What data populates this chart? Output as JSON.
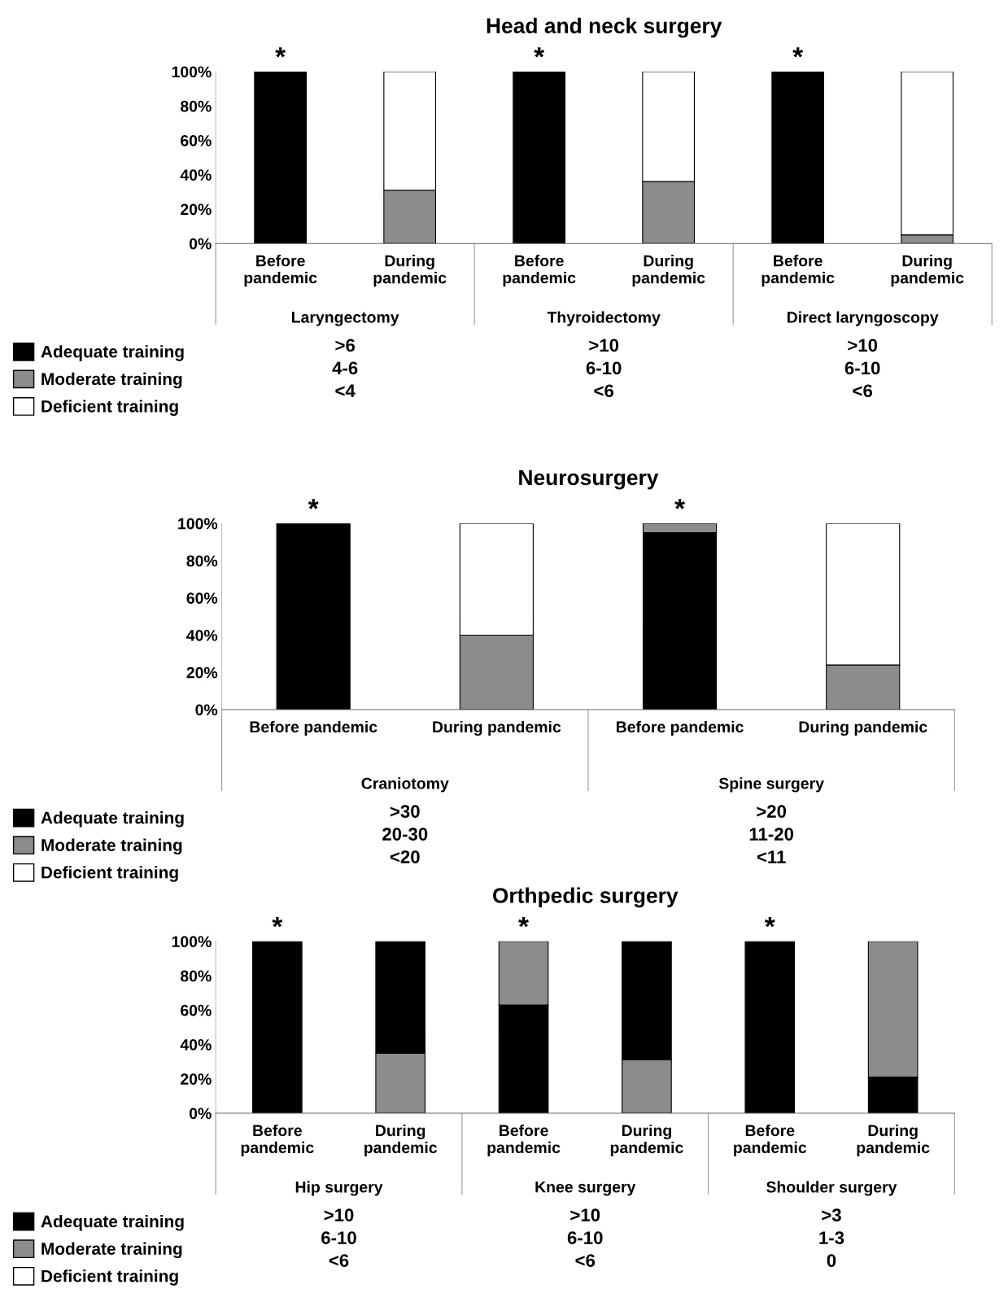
{
  "chart_data": [
    {
      "type": "bar",
      "stacked": true,
      "title": "Head and neck surgery",
      "categories": [
        "Before pandemic",
        "During pandemic",
        "Before pandemic",
        "During pandemic",
        "Before pandemic",
        "During pandemic"
      ],
      "series": [
        {
          "name": "Adequate training",
          "color": "#000000",
          "values": [
            100,
            0,
            100,
            0,
            100,
            0
          ]
        },
        {
          "name": "Moderate training",
          "color": "#8c8c8c",
          "values": [
            0,
            31,
            0,
            36,
            0,
            5
          ]
        },
        {
          "name": "Deficient training",
          "color": "#ffffff",
          "values": [
            0,
            69,
            0,
            64,
            0,
            95
          ]
        }
      ],
      "ylim": [
        0,
        100
      ],
      "yticks": [
        {
          "value": 0,
          "label": "0%"
        },
        {
          "value": 20,
          "label": "20%"
        },
        {
          "value": 40,
          "label": "40%"
        },
        {
          "value": 60,
          "label": "60%"
        },
        {
          "value": 80,
          "label": "80%"
        },
        {
          "value": 100,
          "label": "100%"
        }
      ],
      "grid": false,
      "legend": "bottom left",
      "annotations": [
        "*",
        "*",
        "*",
        "Laryngectomy",
        "Thyroidectomy",
        "Direct laryngoscopy",
        ">6\n4-6\n<4",
        ">10\n6-10\n<6",
        ">10\n6-10\n<6"
      ]
    },
    {
      "type": "bar",
      "stacked": true,
      "title": "Neurosurgery",
      "categories": [
        "Before pandemic",
        "During pandemic",
        "Before pandemic",
        "During pandemic"
      ],
      "series": [
        {
          "name": "Adequate training",
          "color": "#000000",
          "values": [
            100,
            0,
            95,
            0
          ]
        },
        {
          "name": "Moderate training",
          "color": "#8c8c8c",
          "values": [
            0,
            40,
            5,
            24
          ]
        },
        {
          "name": "Deficient training",
          "color": "#ffffff",
          "values": [
            0,
            60,
            0,
            76
          ]
        }
      ],
      "ylim": [
        0,
        100
      ],
      "yticks": [
        {
          "value": 0,
          "label": "0%"
        },
        {
          "value": 20,
          "label": "20%"
        },
        {
          "value": 40,
          "label": "40%"
        },
        {
          "value": 60,
          "label": "60%"
        },
        {
          "value": 80,
          "label": "80%"
        },
        {
          "value": 100,
          "label": "100%"
        }
      ],
      "grid": false,
      "legend": "bottom left",
      "annotations": [
        "*",
        "*",
        "Craniotomy",
        "Spine surgery",
        ">30\n20-30\n<20",
        ">20\n11-20\n<11"
      ]
    },
    {
      "type": "bar",
      "stacked": true,
      "title": "Orthpedic surgery",
      "categories": [
        "Before pandemic",
        "During pandemic",
        "Before pandemic",
        "During pandemic",
        "Before pandemic",
        "During pandemic"
      ],
      "series": [
        {
          "name": "Adequate training",
          "color": "#000000",
          "values": [
            100,
            0,
            63,
            0,
            100,
            21
          ]
        },
        {
          "name": "Moderate training",
          "color": "#8c8c8c",
          "values": [
            0,
            35,
            37,
            31,
            0,
            79
          ]
        },
        {
          "color": "#000000",
          "values": [
            0,
            65,
            0,
            69,
            0,
            0
          ]
        },
        {
          "name": "Deficient training",
          "color": "#ffffff",
          "values": [
            0,
            0,
            0,
            0,
            0,
            0
          ]
        }
      ],
      "ylim": [
        0,
        100
      ],
      "yticks": [
        {
          "value": 0,
          "label": "0%"
        },
        {
          "value": 20,
          "label": "20%"
        },
        {
          "value": 40,
          "label": "40%"
        },
        {
          "value": 60,
          "label": "60%"
        },
        {
          "value": 80,
          "label": "80%"
        },
        {
          "value": 100,
          "label": "100%"
        }
      ],
      "grid": false,
      "legend": "bottom left",
      "annotations": [
        "*",
        "*",
        "*",
        "Hip surgery",
        "Knee surgery",
        "Shoulder surgery",
        ">10\n6-10\n<6",
        ">10\n6-10\n<6",
        ">3\n1-3\n0"
      ]
    }
  ]
}
